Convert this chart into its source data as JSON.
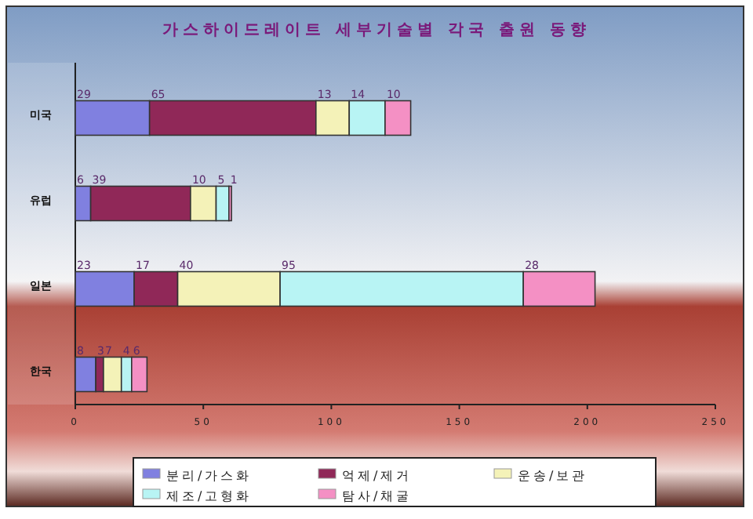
{
  "chart_data": {
    "type": "bar",
    "orientation": "horizontal",
    "stacked": true,
    "title": "가스하이드레이트 세부기술별 각국 출원 동향",
    "categories": [
      "미국",
      "유럽",
      "일본",
      "한국"
    ],
    "series": [
      {
        "name": "분리/가스화",
        "color": "#8080e0",
        "values": [
          29,
          6,
          23,
          8
        ]
      },
      {
        "name": "억제/제거",
        "color": "#902858",
        "values": [
          65,
          39,
          17,
          3
        ]
      },
      {
        "name": "운송/보관",
        "color": "#f4f2b8",
        "values": [
          13,
          10,
          40,
          7
        ]
      },
      {
        "name": "제조/고형화",
        "color": "#b8f4f4",
        "values": [
          14,
          5,
          95,
          4
        ]
      },
      {
        "name": "탐사/채굴",
        "color": "#f490c4",
        "values": [
          10,
          1,
          28,
          6
        ]
      }
    ],
    "xlim": [
      0,
      250
    ],
    "xticks": [
      0,
      50,
      100,
      150,
      200,
      250
    ],
    "data_labels": true,
    "grid": false,
    "legend": "bottom"
  }
}
